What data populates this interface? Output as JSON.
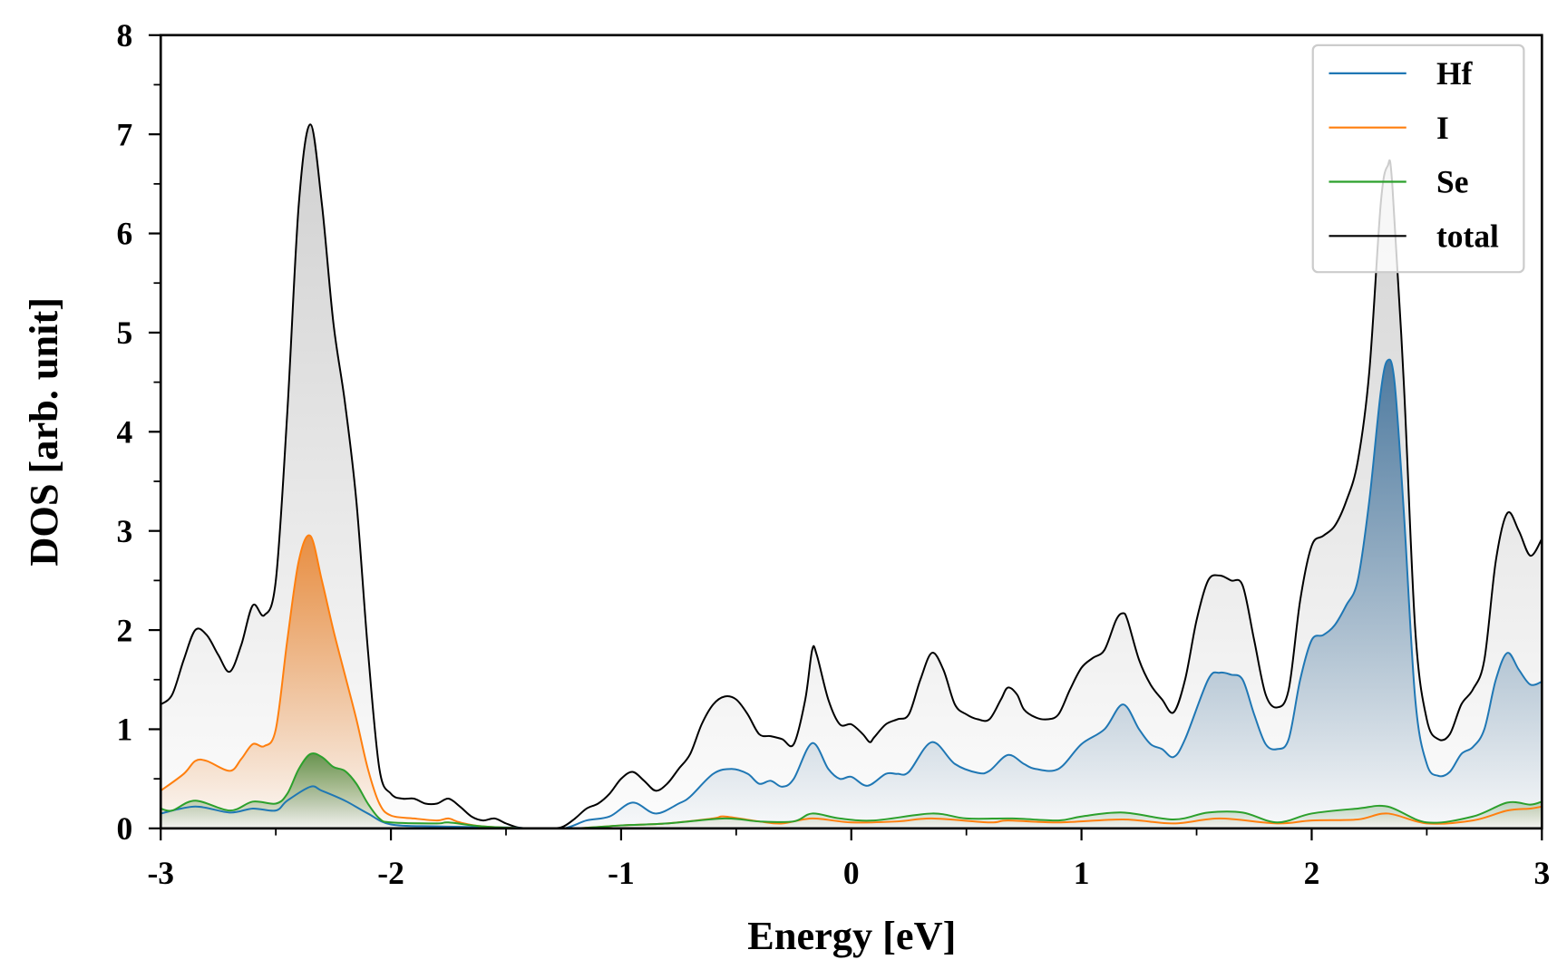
{
  "chart_data": {
    "type": "line",
    "title": "",
    "xlabel": "Energy [eV]",
    "ylabel": "DOS [arb. unit]",
    "xlim": [
      -3,
      3
    ],
    "ylim": [
      0,
      8
    ],
    "xticks": [
      "-3",
      "-2",
      "-1",
      "0",
      "1",
      "2",
      "3"
    ],
    "xtick_values": [
      -3,
      -2,
      -1,
      0,
      1,
      2,
      3
    ],
    "yticks": [
      "0",
      "1",
      "2",
      "3",
      "4",
      "5",
      "6",
      "7",
      "8"
    ],
    "ytick_values": [
      0,
      1,
      2,
      3,
      4,
      5,
      6,
      7,
      8
    ],
    "minor_tick_step": 0.5,
    "grid": false,
    "legend": {
      "placement": "top-right",
      "entries": [
        "Hf",
        "I",
        "Se",
        "total"
      ]
    },
    "series": [
      {
        "name": "Hf",
        "color": "#1f77b4",
        "fill": "#1f5a8c",
        "x": [
          -3,
          -2.85,
          -2.7,
          -2.6,
          -2.5,
          -2.45,
          -2.35,
          -2.3,
          -2.2,
          -2.1,
          -2.0,
          -1.8,
          -1.5,
          -1.4,
          -1.25,
          -1.15,
          -1.05,
          -0.95,
          -0.85,
          -0.75,
          -0.7,
          -0.6,
          -0.52,
          -0.45,
          -0.4,
          -0.35,
          -0.3,
          -0.25,
          -0.17,
          -0.1,
          -0.05,
          0,
          0.07,
          0.15,
          0.2,
          0.25,
          0.35,
          0.45,
          0.55,
          0.6,
          0.68,
          0.75,
          0.8,
          0.9,
          1.0,
          1.1,
          1.18,
          1.25,
          1.3,
          1.35,
          1.4,
          1.45,
          1.55,
          1.6,
          1.65,
          1.7,
          1.75,
          1.8,
          1.85,
          1.9,
          1.95,
          2.0,
          2.05,
          2.1,
          2.15,
          2.2,
          2.25,
          2.3,
          2.33,
          2.36,
          2.4,
          2.45,
          2.5,
          2.55,
          2.6,
          2.65,
          2.7,
          2.75,
          2.8,
          2.85,
          2.9,
          2.95,
          3.0
        ],
        "y": [
          0.15,
          0.22,
          0.16,
          0.2,
          0.18,
          0.28,
          0.42,
          0.38,
          0.28,
          0.15,
          0.04,
          0.02,
          0.01,
          0,
          0,
          0.08,
          0.12,
          0.26,
          0.15,
          0.25,
          0.32,
          0.55,
          0.6,
          0.55,
          0.45,
          0.48,
          0.42,
          0.5,
          0.86,
          0.6,
          0.5,
          0.52,
          0.43,
          0.55,
          0.55,
          0.57,
          0.87,
          0.65,
          0.56,
          0.58,
          0.74,
          0.65,
          0.6,
          0.6,
          0.85,
          1.0,
          1.25,
          1.0,
          0.85,
          0.8,
          0.72,
          0.9,
          1.5,
          1.57,
          1.55,
          1.5,
          1.15,
          0.85,
          0.8,
          0.9,
          1.5,
          1.9,
          1.95,
          2.05,
          2.25,
          2.5,
          3.3,
          4.4,
          4.72,
          4.5,
          3.2,
          1.3,
          0.65,
          0.53,
          0.57,
          0.75,
          0.82,
          1.0,
          1.5,
          1.77,
          1.6,
          1.45,
          1.48
        ]
      },
      {
        "name": "I",
        "color": "#ff7f0e",
        "fill": "#e8700a",
        "x": [
          -3,
          -2.9,
          -2.85,
          -2.8,
          -2.7,
          -2.65,
          -2.6,
          -2.55,
          -2.5,
          -2.45,
          -2.4,
          -2.35,
          -2.3,
          -2.25,
          -2.2,
          -2.15,
          -2.1,
          -2.05,
          -2,
          -1.9,
          -1.8,
          -1.75,
          -1.7,
          -1.6,
          -1.4,
          -1.2,
          -1.0,
          -0.8,
          -0.6,
          -0.55,
          -0.4,
          -0.3,
          -0.17,
          0,
          0.2,
          0.35,
          0.6,
          0.68,
          0.9,
          1.18,
          1.4,
          1.6,
          1.85,
          2.0,
          2.2,
          2.33,
          2.5,
          2.7,
          2.85,
          2.95,
          3.0
        ],
        "y": [
          0.38,
          0.55,
          0.68,
          0.68,
          0.58,
          0.7,
          0.85,
          0.83,
          1.0,
          1.9,
          2.7,
          2.95,
          2.5,
          2.0,
          1.55,
          1.1,
          0.6,
          0.25,
          0.13,
          0.1,
          0.08,
          0.1,
          0.06,
          0.02,
          0,
          0,
          0.03,
          0.05,
          0.1,
          0.12,
          0.07,
          0.05,
          0.1,
          0.06,
          0.07,
          0.1,
          0.06,
          0.08,
          0.06,
          0.09,
          0.05,
          0.1,
          0.05,
          0.08,
          0.09,
          0.15,
          0.05,
          0.08,
          0.18,
          0.2,
          0.22
        ]
      },
      {
        "name": "Se",
        "color": "#2ca02c",
        "fill": "#3a7d2a",
        "x": [
          -3,
          -2.95,
          -2.85,
          -2.7,
          -2.6,
          -2.5,
          -2.45,
          -2.4,
          -2.35,
          -2.3,
          -2.25,
          -2.2,
          -2.15,
          -2.1,
          -2.05,
          -2,
          -1.8,
          -1.75,
          -1.6,
          -1.4,
          -1.2,
          -1.0,
          -0.8,
          -0.55,
          -0.4,
          -0.25,
          -0.17,
          -0.05,
          0.1,
          0.35,
          0.5,
          0.7,
          0.9,
          1.0,
          1.18,
          1.4,
          1.55,
          1.7,
          1.85,
          2.0,
          2.2,
          2.33,
          2.5,
          2.7,
          2.85,
          2.95,
          3.0
        ],
        "y": [
          0.2,
          0.18,
          0.28,
          0.18,
          0.27,
          0.25,
          0.35,
          0.6,
          0.75,
          0.72,
          0.62,
          0.58,
          0.45,
          0.25,
          0.1,
          0.06,
          0.05,
          0.06,
          0.02,
          0,
          0,
          0.03,
          0.05,
          0.1,
          0.07,
          0.07,
          0.15,
          0.1,
          0.08,
          0.15,
          0.1,
          0.1,
          0.08,
          0.12,
          0.16,
          0.09,
          0.16,
          0.16,
          0.06,
          0.15,
          0.2,
          0.22,
          0.06,
          0.12,
          0.26,
          0.24,
          0.27
        ]
      },
      {
        "name": "total",
        "color": "#000000",
        "fill": "#7a7a7a",
        "x": [
          -3,
          -2.95,
          -2.9,
          -2.85,
          -2.8,
          -2.75,
          -2.7,
          -2.65,
          -2.6,
          -2.55,
          -2.5,
          -2.45,
          -2.4,
          -2.35,
          -2.3,
          -2.25,
          -2.2,
          -2.15,
          -2.1,
          -2.05,
          -2,
          -1.95,
          -1.9,
          -1.85,
          -1.8,
          -1.75,
          -1.7,
          -1.65,
          -1.6,
          -1.55,
          -1.5,
          -1.45,
          -1.4,
          -1.3,
          -1.25,
          -1.2,
          -1.15,
          -1.1,
          -1.05,
          -1.0,
          -0.95,
          -0.9,
          -0.85,
          -0.8,
          -0.75,
          -0.7,
          -0.65,
          -0.6,
          -0.55,
          -0.5,
          -0.45,
          -0.4,
          -0.35,
          -0.3,
          -0.25,
          -0.2,
          -0.17,
          -0.15,
          -0.1,
          -0.05,
          0,
          0.05,
          0.08,
          0.1,
          0.15,
          0.2,
          0.25,
          0.3,
          0.35,
          0.4,
          0.45,
          0.5,
          0.55,
          0.6,
          0.65,
          0.68,
          0.72,
          0.75,
          0.8,
          0.85,
          0.9,
          0.95,
          1.0,
          1.05,
          1.1,
          1.15,
          1.18,
          1.2,
          1.25,
          1.3,
          1.35,
          1.4,
          1.45,
          1.5,
          1.55,
          1.6,
          1.65,
          1.7,
          1.75,
          1.8,
          1.85,
          1.9,
          1.95,
          2.0,
          2.05,
          2.1,
          2.15,
          2.2,
          2.25,
          2.3,
          2.33,
          2.35,
          2.4,
          2.45,
          2.5,
          2.55,
          2.6,
          2.65,
          2.7,
          2.75,
          2.8,
          2.85,
          2.9,
          2.95,
          3.0
        ],
        "y": [
          1.25,
          1.35,
          1.7,
          2.0,
          1.95,
          1.75,
          1.58,
          1.85,
          2.25,
          2.15,
          2.5,
          4.2,
          6.3,
          7.1,
          6.3,
          5.1,
          4.3,
          3.3,
          1.8,
          0.6,
          0.35,
          0.3,
          0.3,
          0.25,
          0.25,
          0.3,
          0.22,
          0.12,
          0.08,
          0.1,
          0.05,
          0.01,
          0,
          0,
          0.02,
          0.1,
          0.2,
          0.25,
          0.35,
          0.5,
          0.57,
          0.48,
          0.38,
          0.45,
          0.6,
          0.75,
          1.05,
          1.25,
          1.33,
          1.3,
          1.15,
          0.95,
          0.93,
          0.9,
          0.85,
          1.3,
          1.8,
          1.75,
          1.3,
          1.05,
          1.05,
          0.95,
          0.87,
          0.92,
          1.05,
          1.1,
          1.15,
          1.5,
          1.77,
          1.6,
          1.25,
          1.15,
          1.1,
          1.1,
          1.3,
          1.42,
          1.35,
          1.2,
          1.12,
          1.1,
          1.15,
          1.4,
          1.62,
          1.72,
          1.8,
          2.1,
          2.17,
          2.1,
          1.7,
          1.45,
          1.3,
          1.17,
          1.5,
          2.1,
          2.5,
          2.55,
          2.5,
          2.45,
          1.9,
          1.35,
          1.22,
          1.4,
          2.3,
          2.85,
          2.95,
          3.05,
          3.3,
          3.7,
          4.6,
          6.3,
          6.68,
          6.5,
          4.5,
          2.0,
          1.1,
          0.9,
          0.95,
          1.25,
          1.4,
          1.7,
          2.7,
          3.18,
          3.0,
          2.75,
          2.92
        ]
      }
    ]
  }
}
